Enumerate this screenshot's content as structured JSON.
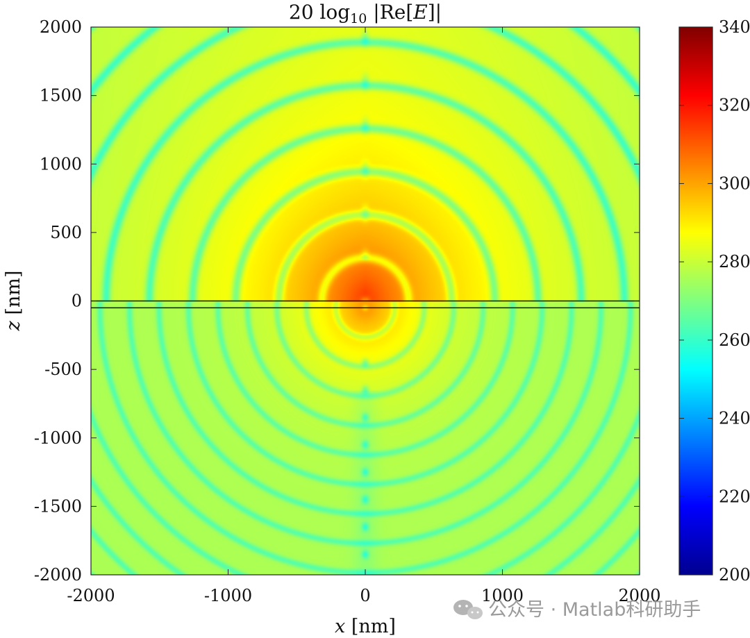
{
  "chart_data": {
    "type": "heatmap",
    "title_parts": {
      "prefix": "20 log",
      "subscript": "10",
      "body": " |Re[",
      "italic": "E",
      "suffix": "]|"
    },
    "xlabel_var": "x",
    "xlabel_unit": " [nm]",
    "ylabel_var": "z",
    "ylabel_unit": " [nm]",
    "xlim": [
      -2000,
      2000
    ],
    "ylim": [
      -2000,
      2000
    ],
    "x_ticks": [
      -2000,
      -1000,
      0,
      1000,
      2000
    ],
    "x_tick_labels": [
      "-2000",
      "-1000",
      "0",
      "1000",
      "2000"
    ],
    "y_ticks": [
      2000,
      1500,
      1000,
      500,
      0,
      -500,
      -1000,
      -1500,
      -2000
    ],
    "y_tick_labels": [
      "2000",
      "1500",
      "1000",
      "500",
      "0",
      "-500",
      "-1000",
      "-1500",
      "-2000"
    ],
    "colorbar": {
      "colormap": "jet",
      "clim": [
        200,
        340
      ],
      "ticks": [
        340,
        320,
        300,
        280,
        260,
        240,
        220,
        200
      ],
      "tick_labels": [
        "340",
        "320",
        "300",
        "280",
        "260",
        "240",
        "220",
        "200"
      ]
    },
    "interface_lines_z": [
      0,
      -50
    ],
    "field": {
      "description_free": true,
      "peak_value": 315,
      "peak_location": [
        0,
        0
      ],
      "background_value": 277,
      "node_value": 258,
      "axis_node_z_upper": [
        1700,
        1380,
        1060,
        750,
        430
      ],
      "axis_node_z_lower": [
        -430,
        -820,
        -1230,
        -1460,
        -1660,
        -1870
      ],
      "wavelength_upper": 630,
      "wavelength_lower": 430
    }
  },
  "watermark": {
    "text": "公众号 · Matlab科研助手",
    "icon": "wechat-icon"
  }
}
